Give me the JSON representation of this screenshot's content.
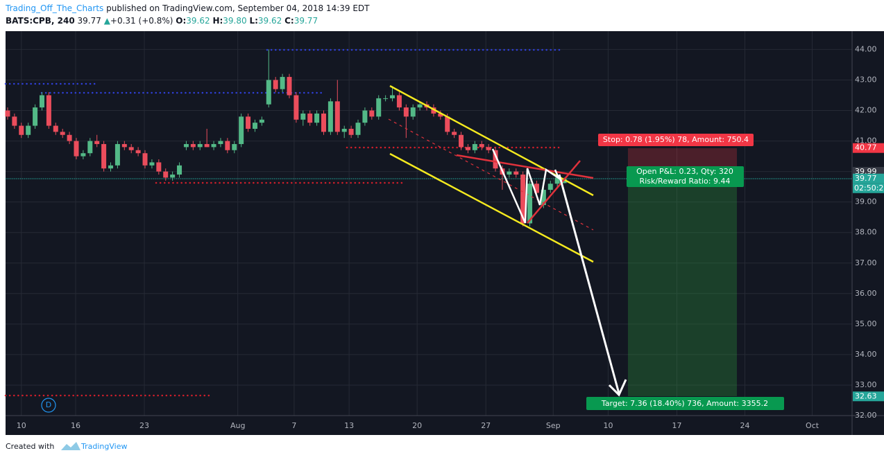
{
  "header": {
    "author": "Trading_Off_The_Charts",
    "published": "published on TradingView.com, September 04, 2018 14:39 EDT",
    "symbol": "BATS:CPB, 240",
    "last": "39.77",
    "arrow": "▲",
    "change": "+0.31 (+0.8%)",
    "legend": [
      {
        "label": "O:",
        "value": "39.62"
      },
      {
        "label": "H:",
        "value": "39.80"
      },
      {
        "label": "L:",
        "value": "39.62"
      },
      {
        "label": "C:",
        "value": "39.77"
      }
    ]
  },
  "chart_data": {
    "type": "candlestick",
    "up_color": "#53b987",
    "down_color": "#eb4d5c",
    "grid": true,
    "ohlc": [
      [
        42.0,
        42.1,
        41.7,
        41.8
      ],
      [
        41.8,
        41.9,
        41.4,
        41.5
      ],
      [
        41.5,
        41.6,
        41.1,
        41.2
      ],
      [
        41.2,
        41.6,
        41.1,
        41.5
      ],
      [
        41.5,
        42.2,
        41.4,
        42.1
      ],
      [
        42.1,
        42.6,
        42.0,
        42.5
      ],
      [
        42.5,
        42.6,
        41.4,
        41.5
      ],
      [
        41.5,
        41.6,
        41.2,
        41.3
      ],
      [
        41.3,
        41.4,
        41.1,
        41.2
      ],
      [
        41.2,
        41.3,
        40.9,
        41.0
      ],
      [
        41.0,
        41.1,
        40.4,
        40.5
      ],
      [
        40.5,
        40.7,
        40.4,
        40.6
      ],
      [
        40.6,
        41.1,
        40.5,
        41.0
      ],
      [
        41.0,
        41.2,
        40.8,
        40.9
      ],
      [
        40.9,
        41.0,
        40.0,
        40.1
      ],
      [
        40.1,
        40.3,
        40.0,
        40.2
      ],
      [
        40.2,
        41.0,
        40.1,
        40.9
      ],
      [
        40.9,
        41.0,
        40.7,
        40.8
      ],
      [
        40.8,
        40.9,
        40.6,
        40.7
      ],
      [
        40.7,
        40.8,
        40.5,
        40.6
      ],
      [
        40.6,
        40.7,
        40.1,
        40.2
      ],
      [
        40.2,
        40.4,
        40.1,
        40.3
      ],
      [
        40.3,
        40.4,
        39.9,
        40.0
      ],
      [
        40.0,
        40.1,
        39.7,
        39.8
      ],
      [
        39.8,
        40.0,
        39.7,
        39.9
      ],
      [
        39.9,
        40.3,
        39.8,
        40.2
      ],
      [
        40.8,
        41.0,
        40.7,
        40.9
      ],
      [
        40.9,
        41.0,
        40.7,
        40.8
      ],
      [
        40.8,
        41.0,
        40.7,
        40.9
      ],
      [
        40.9,
        41.4,
        40.8,
        40.8
      ],
      [
        40.8,
        41.0,
        40.7,
        40.9
      ],
      [
        40.9,
        41.1,
        40.8,
        41.0
      ],
      [
        41.0,
        41.1,
        40.6,
        40.7
      ],
      [
        40.7,
        41.0,
        40.6,
        40.9
      ],
      [
        40.9,
        41.9,
        40.8,
        41.8
      ],
      [
        41.8,
        41.9,
        41.3,
        41.4
      ],
      [
        41.4,
        41.7,
        41.3,
        41.6
      ],
      [
        41.6,
        41.8,
        41.5,
        41.7
      ],
      [
        42.2,
        44.0,
        42.1,
        43.0
      ],
      [
        43.0,
        43.1,
        42.6,
        42.7
      ],
      [
        42.7,
        43.2,
        42.6,
        43.1
      ],
      [
        43.1,
        43.2,
        42.4,
        42.5
      ],
      [
        42.5,
        42.6,
        41.6,
        41.7
      ],
      [
        41.7,
        42.0,
        41.5,
        41.9
      ],
      [
        41.9,
        42.0,
        41.5,
        41.6
      ],
      [
        41.6,
        42.0,
        41.5,
        41.9
      ],
      [
        41.9,
        42.0,
        41.2,
        41.3
      ],
      [
        41.3,
        42.4,
        41.2,
        42.3
      ],
      [
        42.3,
        43.0,
        41.2,
        41.3
      ],
      [
        41.3,
        41.5,
        41.1,
        41.4
      ],
      [
        41.4,
        41.5,
        41.1,
        41.2
      ],
      [
        41.2,
        41.7,
        41.1,
        41.6
      ],
      [
        41.6,
        42.1,
        41.5,
        42.0
      ],
      [
        42.0,
        42.1,
        41.7,
        41.8
      ],
      [
        41.8,
        42.5,
        41.7,
        42.4
      ],
      [
        42.4,
        42.5,
        42.3,
        42.4
      ],
      [
        42.4,
        42.8,
        42.3,
        42.5
      ],
      [
        42.5,
        42.6,
        42.0,
        42.1
      ],
      [
        42.1,
        42.2,
        41.1,
        41.8
      ],
      [
        41.8,
        42.2,
        41.7,
        42.1
      ],
      [
        42.1,
        42.3,
        42.0,
        42.2
      ],
      [
        42.2,
        42.3,
        42.0,
        42.1
      ],
      [
        42.1,
        42.2,
        41.8,
        41.9
      ],
      [
        41.9,
        42.0,
        41.7,
        41.8
      ],
      [
        41.8,
        41.9,
        41.2,
        41.3
      ],
      [
        41.3,
        41.4,
        41.1,
        41.2
      ],
      [
        41.2,
        41.3,
        40.7,
        40.8
      ],
      [
        40.8,
        40.9,
        40.6,
        40.7
      ],
      [
        40.7,
        41.0,
        40.6,
        40.9
      ],
      [
        40.9,
        41.0,
        40.7,
        40.8
      ],
      [
        40.8,
        40.9,
        40.6,
        40.7
      ],
      [
        40.7,
        40.8,
        40.0,
        40.1
      ],
      [
        40.1,
        40.2,
        39.4,
        39.9
      ],
      [
        39.9,
        40.1,
        39.8,
        40.0
      ],
      [
        40.0,
        40.1,
        39.8,
        39.9
      ],
      [
        39.9,
        40.0,
        38.2,
        38.3
      ],
      [
        38.3,
        39.7,
        38.2,
        39.6
      ],
      [
        39.6,
        39.7,
        39.2,
        39.3
      ],
      [
        38.9,
        39.5,
        38.8,
        39.4
      ],
      [
        39.4,
        39.7,
        39.3,
        39.6
      ],
      [
        39.6,
        39.9,
        39.5,
        39.8
      ],
      [
        39.62,
        39.8,
        39.62,
        39.77
      ]
    ],
    "xlim": [
      -0.3,
      122.9
    ],
    "xticks": [
      {
        "value": 2.0,
        "label": "10"
      },
      {
        "value": 9.9,
        "label": "16"
      },
      {
        "value": 19.9,
        "label": "23"
      },
      {
        "value": 33.5,
        "label": "Aug"
      },
      {
        "value": 41.7,
        "label": "7"
      },
      {
        "value": 49.7,
        "label": "13"
      },
      {
        "value": 59.6,
        "label": "20"
      },
      {
        "value": 69.6,
        "label": "27"
      },
      {
        "value": 79.4,
        "label": "Sep"
      },
      {
        "value": 87.4,
        "label": "10"
      },
      {
        "value": 97.4,
        "label": "17"
      },
      {
        "value": 107.3,
        "label": "24"
      },
      {
        "value": 117.1,
        "label": "Oct"
      }
    ],
    "ylim": [
      32,
      44.6
    ],
    "yticks": [
      {
        "value": 32,
        "label": "32.00"
      },
      {
        "value": 33,
        "label": "33.00"
      },
      {
        "value": 34,
        "label": "34.00"
      },
      {
        "value": 35,
        "label": "35.00"
      },
      {
        "value": 36,
        "label": "36.00"
      },
      {
        "value": 37,
        "label": "37.00"
      },
      {
        "value": 38,
        "label": "38.00"
      },
      {
        "value": 39,
        "label": "39.00"
      },
      {
        "value": 40,
        "label": "40.00"
      },
      {
        "value": 41,
        "label": "41.00"
      },
      {
        "value": 42,
        "label": "42.00"
      },
      {
        "value": 43,
        "label": "43.00"
      },
      {
        "value": 44,
        "label": "44.00"
      }
    ],
    "price_labels": [
      {
        "value": 40.77,
        "label": "40.77",
        "color": "#f23645"
      },
      {
        "value": 39.99,
        "label": "39.99",
        "color": "#363a45"
      },
      {
        "value": 39.77,
        "label": "39.77",
        "color": "#26a69a"
      },
      {
        "value": 32.63,
        "label": "32.63",
        "color": "#26a69a"
      }
    ]
  },
  "annotations": {
    "stop": "Stop: 0.78 (1.95%) 78, Amount: 750.4",
    "pnl": "Open P&L: 0.23, Qty: 320",
    "rr": "Risk/Reward Ratio: 9.44",
    "target": "Target: 7.36 (18.40%) 736, Amount: 3355.2",
    "marker": "D",
    "countdown": "02:50:2"
  },
  "footer": {
    "created": "Created with",
    "brand": "TradingView"
  }
}
